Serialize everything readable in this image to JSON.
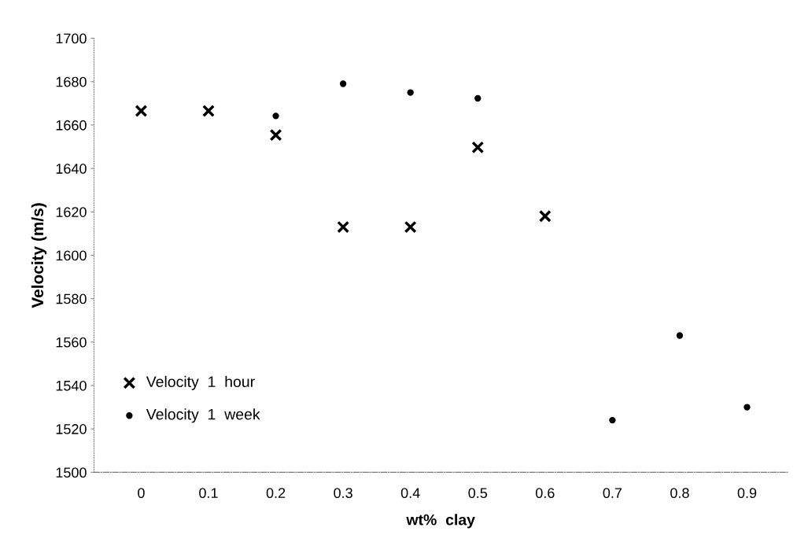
{
  "chart_data": {
    "type": "scatter",
    "xlabel": "wt%  clay",
    "ylabel": "Velocity (m/s)",
    "x": [
      0,
      0.1,
      0.2,
      0.3,
      0.4,
      0.5,
      0.6,
      0.7,
      0.8,
      0.9
    ],
    "series": [
      {
        "name": "Velocity  1  hour",
        "color": "#000000",
        "marker": "cross",
        "values": [
          1666.5,
          1666.5,
          1655.4,
          1613,
          1613,
          1649.7,
          1618,
          null,
          null,
          null
        ]
      },
      {
        "name": "Velocity  1  week",
        "color": "#000000",
        "marker": "circle",
        "values": [
          null,
          null,
          1664.2,
          1679,
          1675,
          1672.3,
          null,
          1524,
          1563,
          1530
        ]
      }
    ],
    "xlim": [
      -0.07,
      0.96
    ],
    "xticks": [
      0,
      0.1,
      0.2,
      0.3,
      0.4,
      0.5,
      0.6,
      0.7,
      0.8,
      0.9
    ],
    "ylim": [
      1500,
      1700
    ],
    "yticks": [
      1500,
      1520,
      1540,
      1560,
      1580,
      1600,
      1620,
      1640,
      1660,
      1680,
      1700
    ],
    "grid": false,
    "legend": "bottom left"
  }
}
